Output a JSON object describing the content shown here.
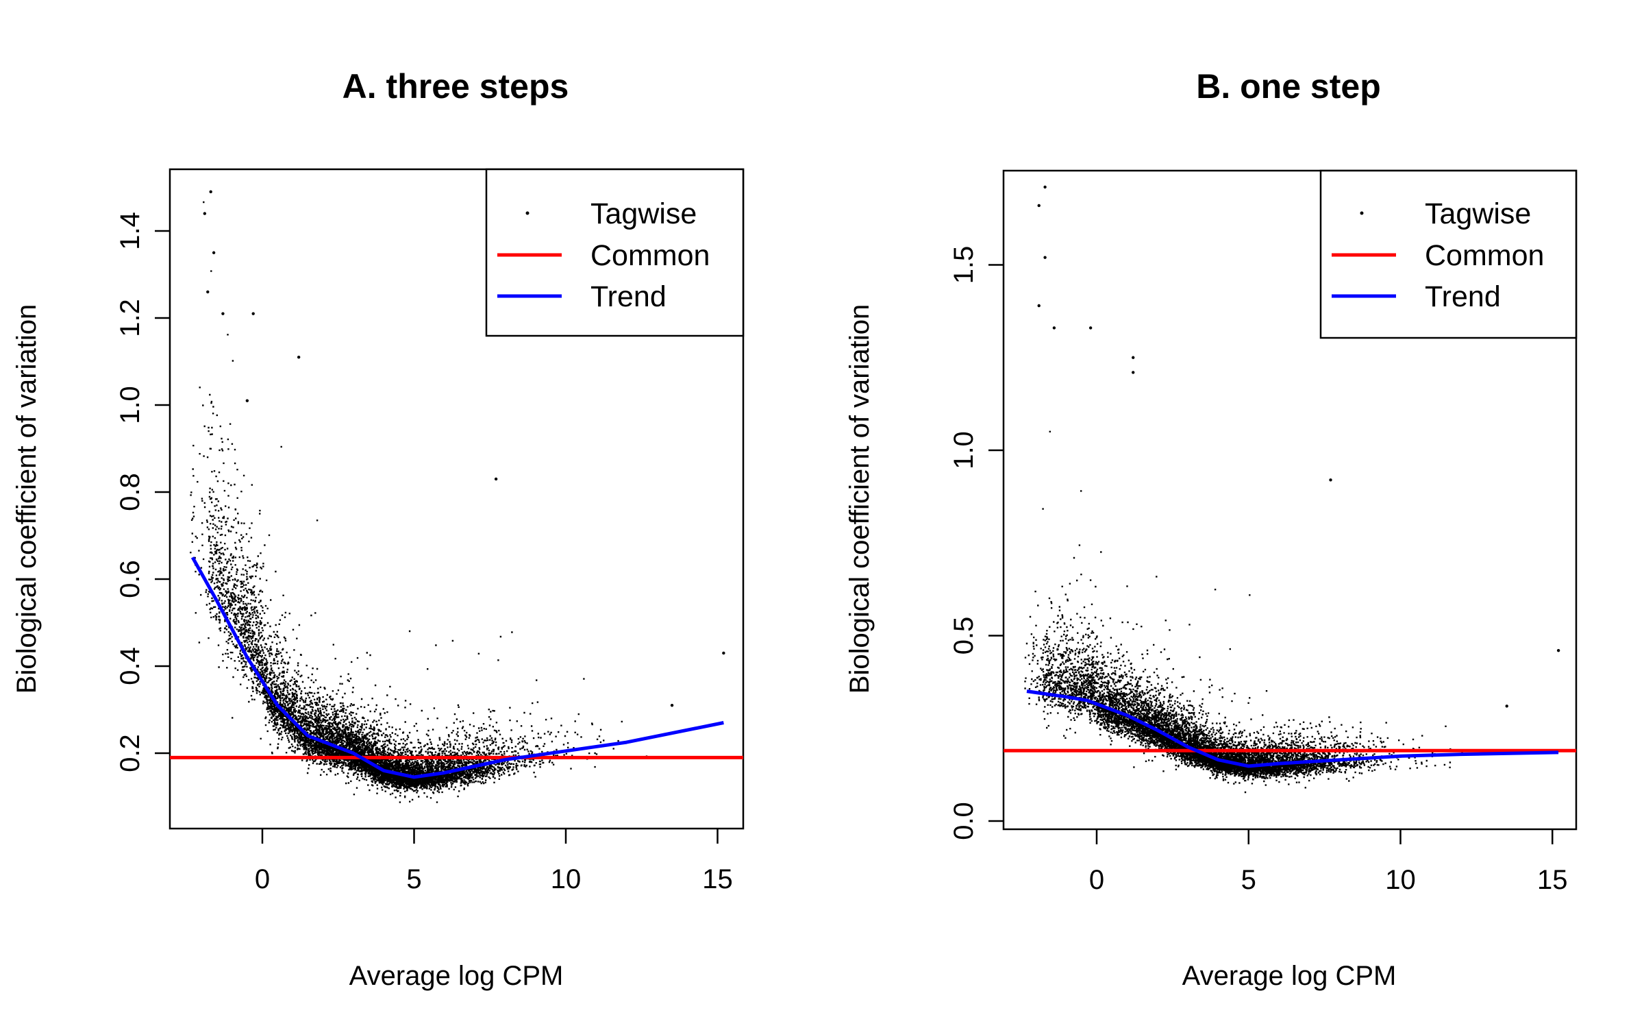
{
  "chart_data": [
    {
      "type": "scatter",
      "title": "A. three steps",
      "xlabel": "Average log CPM",
      "ylabel": "Biological coefficient of variation",
      "xlim": [
        -3,
        16
      ],
      "ylim": [
        0.0,
        1.5
      ],
      "xticks": [
        0,
        5,
        10,
        15
      ],
      "yticks": [
        0.2,
        0.4,
        0.6,
        0.8,
        1.0,
        1.2,
        1.4
      ],
      "ytick_labels": [
        "0.2",
        "0.4",
        "0.6",
        "0.8",
        "1.0",
        "1.2",
        "1.4"
      ],
      "legend": {
        "position": "top-right",
        "entries": [
          {
            "label": "Tagwise",
            "kind": "point",
            "color": "#000000"
          },
          {
            "label": "Common",
            "kind": "line",
            "color": "#ff0000"
          },
          {
            "label": "Trend",
            "kind": "line",
            "color": "#0000ff"
          }
        ]
      },
      "series": [
        {
          "name": "Common",
          "kind": "hline",
          "color": "#ff0000",
          "y": 0.19
        },
        {
          "name": "Trend",
          "kind": "line",
          "color": "#0000ff",
          "x": [
            -2.3,
            -1.5,
            -0.5,
            0.5,
            1.5,
            3.0,
            4.0,
            5.0,
            6.0,
            7.0,
            8.0,
            10.0,
            12.0,
            15.2
          ],
          "y": [
            0.65,
            0.55,
            0.42,
            0.31,
            0.24,
            0.2,
            0.16,
            0.145,
            0.155,
            0.17,
            0.185,
            0.205,
            0.225,
            0.27
          ]
        },
        {
          "name": "Tagwise",
          "kind": "points",
          "color": "#000000",
          "notable_points": [
            [
              -1.7,
              1.49
            ],
            [
              -1.9,
              1.44
            ],
            [
              -1.6,
              1.35
            ],
            [
              -1.8,
              1.26
            ],
            [
              -1.3,
              1.21
            ],
            [
              -0.3,
              1.21
            ],
            [
              1.2,
              1.11
            ],
            [
              -0.5,
              1.01
            ],
            [
              7.7,
              0.83
            ],
            [
              13.5,
              0.31
            ],
            [
              15.2,
              0.43
            ]
          ]
        }
      ]
    },
    {
      "type": "scatter",
      "title": "B. one step",
      "xlabel": "Average log CPM",
      "ylabel": "Biological coefficient of variation",
      "xlim": [
        -3,
        16
      ],
      "ylim": [
        0.0,
        1.75
      ],
      "xticks": [
        0,
        5,
        10,
        15
      ],
      "yticks": [
        0.0,
        0.5,
        1.0,
        1.5
      ],
      "ytick_labels": [
        "0.0",
        "0.5",
        "1.0",
        "1.5"
      ],
      "legend": {
        "position": "top-right",
        "entries": [
          {
            "label": "Tagwise",
            "kind": "point",
            "color": "#000000"
          },
          {
            "label": "Common",
            "kind": "line",
            "color": "#ff0000"
          },
          {
            "label": "Trend",
            "kind": "line",
            "color": "#0000ff"
          }
        ]
      },
      "series": [
        {
          "name": "Common",
          "kind": "hline",
          "color": "#ff0000",
          "y": 0.19
        },
        {
          "name": "Trend",
          "kind": "line",
          "color": "#0000ff",
          "x": [
            -2.3,
            -1.0,
            -0.3,
            1.0,
            2.0,
            3.0,
            4.0,
            5.0,
            6.0,
            8.0,
            10.0,
            12.0,
            15.2
          ],
          "y": [
            0.35,
            0.335,
            0.325,
            0.285,
            0.245,
            0.2,
            0.165,
            0.148,
            0.155,
            0.165,
            0.175,
            0.18,
            0.185
          ]
        },
        {
          "name": "Tagwise",
          "kind": "points",
          "color": "#000000",
          "notable_points": [
            [
              -1.7,
              1.71
            ],
            [
              -1.9,
              1.66
            ],
            [
              -1.7,
              1.52
            ],
            [
              -1.9,
              1.39
            ],
            [
              -1.4,
              1.33
            ],
            [
              -0.2,
              1.33
            ],
            [
              1.2,
              1.25
            ],
            [
              1.2,
              1.21
            ],
            [
              7.7,
              0.92
            ],
            [
              13.5,
              0.31
            ],
            [
              15.2,
              0.46
            ]
          ]
        }
      ]
    }
  ]
}
